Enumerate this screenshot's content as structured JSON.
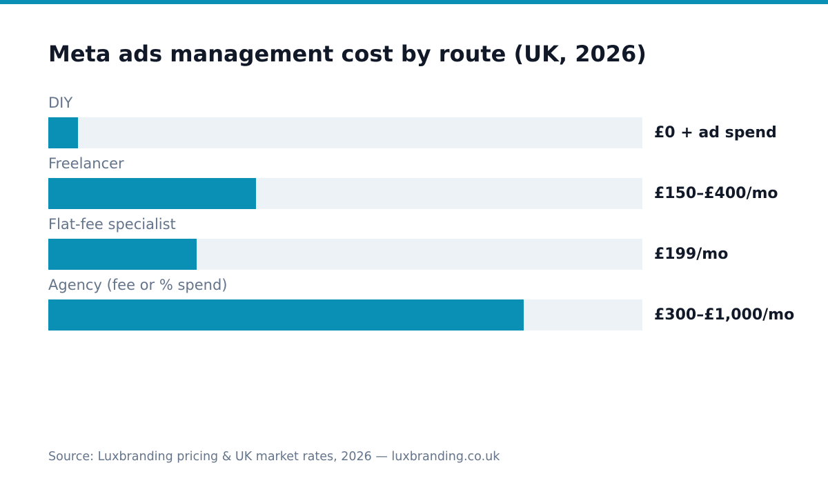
{
  "colors": {
    "accent": "#0a90b4",
    "track": "#edf2f7",
    "title": "#111827",
    "label": "#64748b"
  },
  "chart_data": {
    "type": "bar",
    "orientation": "horizontal",
    "title": "Meta ads management cost by route (UK, 2026)",
    "categories": [
      "DIY",
      "Freelancer",
      "Flat-fee specialist",
      "Agency (fee or % spend)"
    ],
    "values": [
      0.05,
      0.35,
      0.25,
      0.8
    ],
    "value_labels": [
      "£0 + ad spend",
      "£150–£400/mo",
      "£199/mo",
      "£300–£1,000/mo"
    ],
    "xlim": [
      0,
      1
    ],
    "grid": false,
    "legend": "none",
    "source": "Source: Luxbranding pricing & UK market rates, 2026 — luxbranding.co.uk"
  }
}
